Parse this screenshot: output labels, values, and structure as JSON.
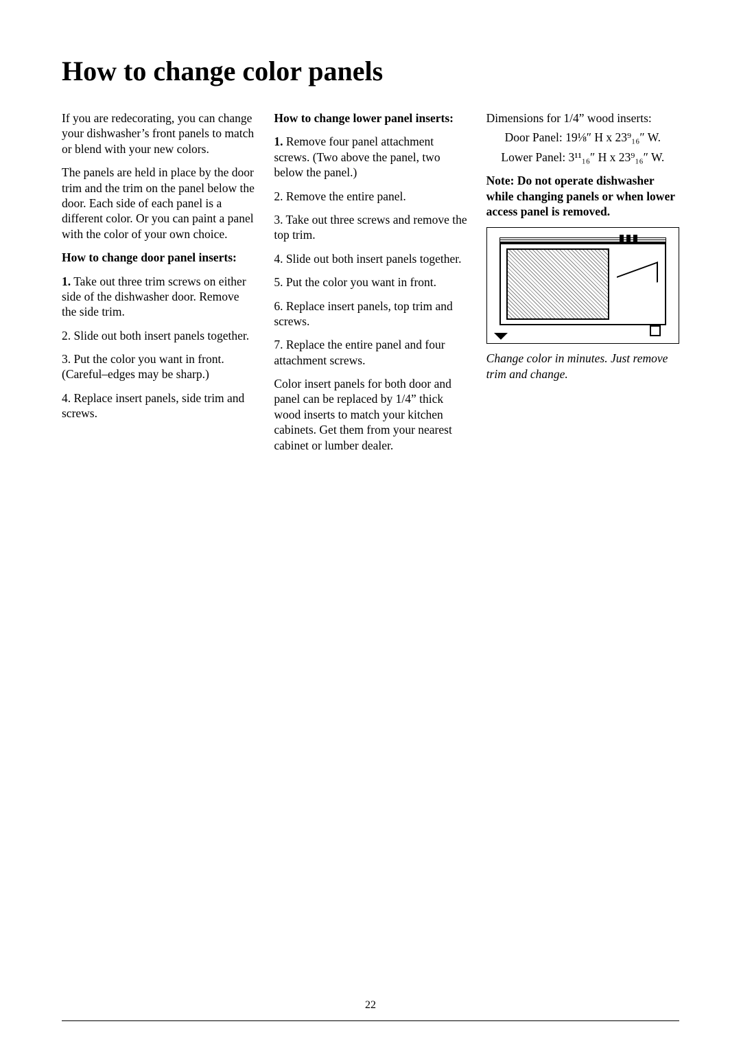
{
  "typography": {
    "body_font": "Times New Roman",
    "body_size_pt": 13,
    "h1_size_pt": 30,
    "line_height": 1.28,
    "text_color": "#000000",
    "background_color": "#ffffff"
  },
  "page": {
    "title": "How to change color panels",
    "number": "22"
  },
  "col1": {
    "p1": "If you are redecorating, you can change your dishwasher’s front panels to match or blend with your new colors.",
    "p2": "The panels are held in place by the door trim and the trim on the panel below the door. Each side of each panel is a different color. Or you can paint a panel with the color of your own choice.",
    "sub": "How to change door panel inserts:",
    "s1": "1. Take out three trim screws on either side of the dishwasher door. Remove the side trim.",
    "s2": "2. Slide out both insert panels together.",
    "s3": "3. Put the color you want in front. (Careful–edges may be sharp.)",
    "s4": "4. Replace insert panels, side trim and screws."
  },
  "col2": {
    "sub": "How to change lower panel inserts:",
    "s1": "1. Remove four panel attachment screws. (Two above the panel, two below the panel.)",
    "s2": "2. Remove the entire panel.",
    "s3": "3. Take out three screws and remove the top trim.",
    "s4": "4. Slide out both insert panels together.",
    "s5": "5. Put the color you want in front.",
    "s6": "6. Replace insert panels, top trim and screws.",
    "s7": "7. Replace the entire panel and four attachment screws.",
    "p2": "Color insert panels for both door and panel can be replaced by 1/4” thick wood inserts to match your kitchen cabinets. Get them from your nearest cabinet or lumber dealer."
  },
  "col3": {
    "dimhead": "Dimensions for 1/4” wood inserts:",
    "dim1": "Door Panel: 19⅛″ H x 23⁹₁₆″ W.",
    "dim2": "Lower Panel: 3¹¹₁₆″ H x 23⁹₁₆″ W.",
    "note": "Note: Do not operate dishwasher while changing panels or when lower access panel is removed.",
    "caption": "Change color in minutes. Just remove trim and change."
  }
}
